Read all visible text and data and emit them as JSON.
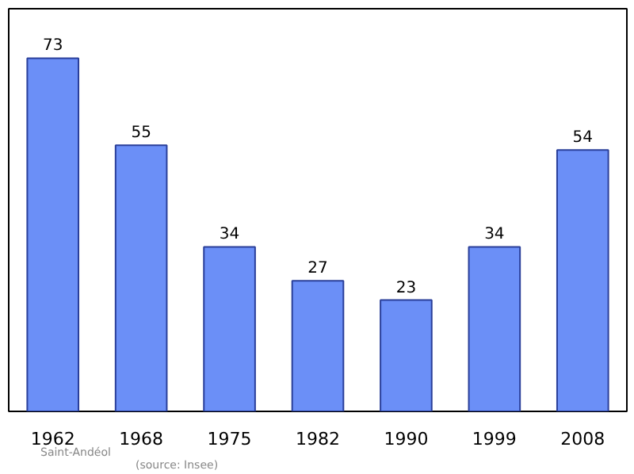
{
  "chart_data": {
    "type": "bar",
    "categories": [
      "1962",
      "1968",
      "1975",
      "1982",
      "1990",
      "1999",
      "2008"
    ],
    "values": [
      73,
      55,
      34,
      27,
      23,
      34,
      54
    ],
    "color": "#6b8ff7",
    "data_labels": true,
    "grid": false,
    "annotations": [
      "Saint-Andéol",
      "(source: Insee)"
    ]
  }
}
